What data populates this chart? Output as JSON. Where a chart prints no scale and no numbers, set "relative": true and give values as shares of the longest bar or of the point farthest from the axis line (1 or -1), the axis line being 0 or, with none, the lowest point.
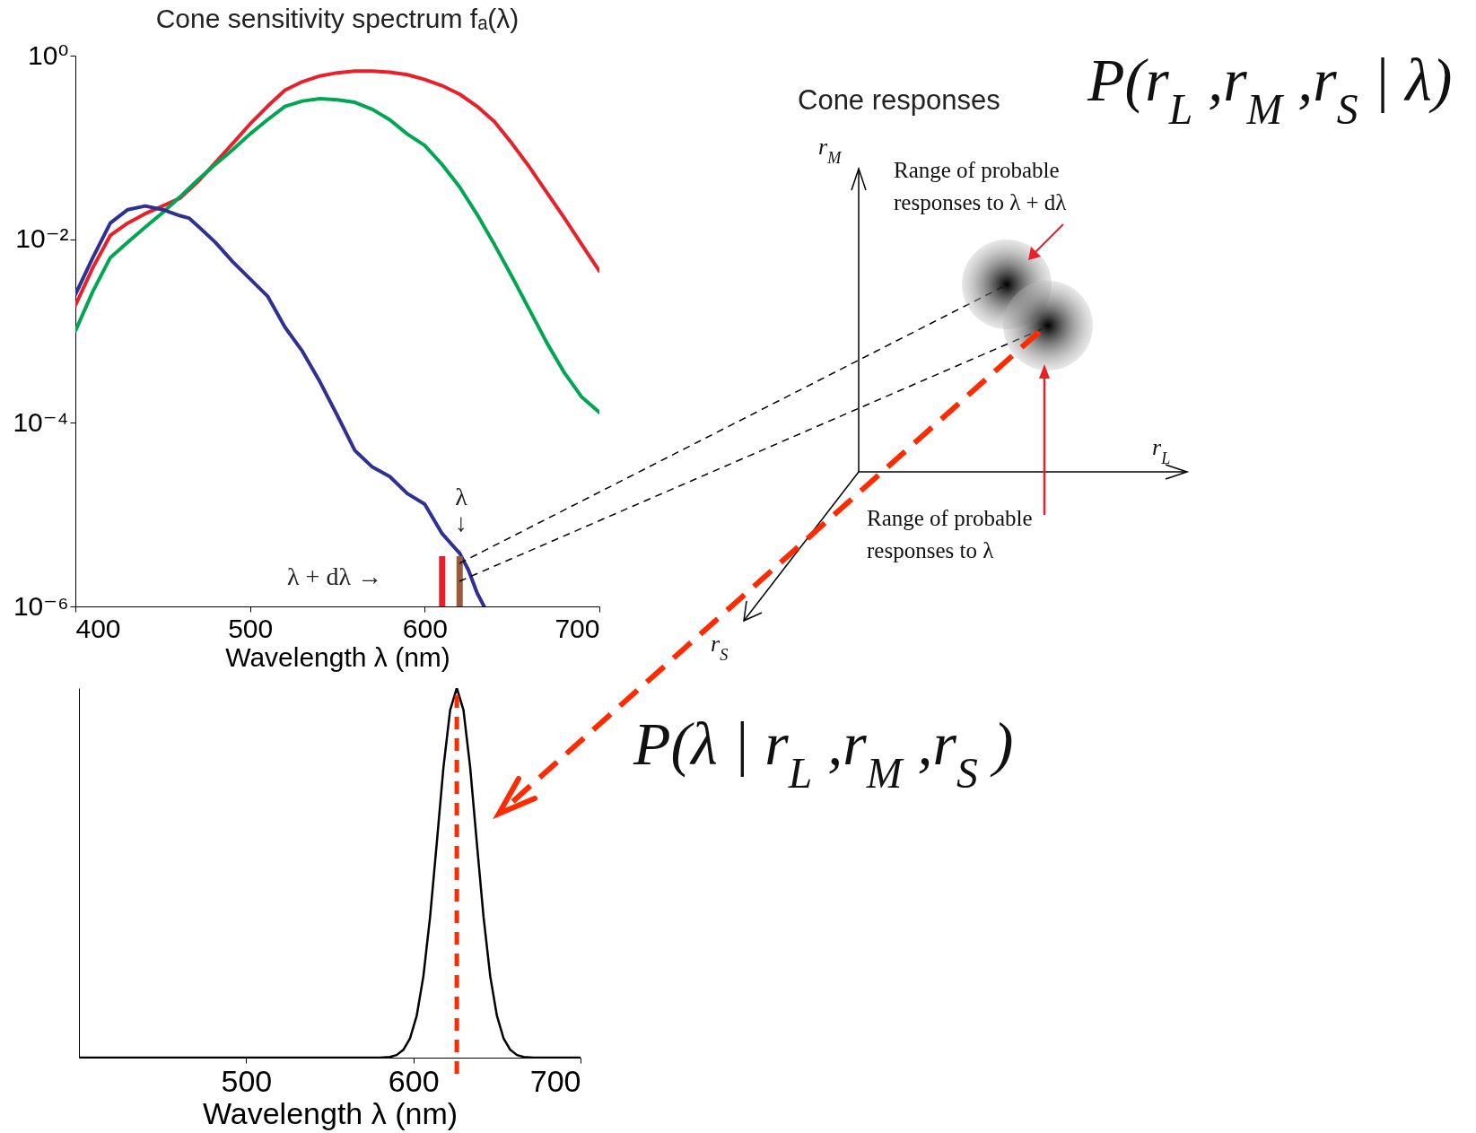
{
  "chart_data": [
    {
      "type": "line",
      "title": "Cone sensitivity spectrum fₐ(λ)",
      "xlabel": "Wavelength  λ   (nm)",
      "xlim": [
        400,
        700
      ],
      "xticks": [
        400,
        500,
        600,
        700
      ],
      "log": true,
      "ylim": [
        1e-06,
        1
      ],
      "yticks": [
        {
          "value": 1e-06,
          "label": "10⁻⁶"
        },
        {
          "value": 0.0001,
          "label": "10⁻⁴"
        },
        {
          "value": 0.01,
          "label": "10⁻²"
        },
        {
          "value": 1,
          "label": "10⁰"
        }
      ],
      "grid": false,
      "legend": false,
      "line_style": "solid",
      "series": [
        {
          "color": "#e8202a",
          "x": [
            400,
            410,
            420,
            430,
            440,
            450,
            460,
            470,
            480,
            490,
            500,
            510,
            520,
            530,
            540,
            550,
            560,
            570,
            580,
            590,
            600,
            610,
            620,
            630,
            640,
            650,
            660,
            670,
            680,
            690,
            700
          ],
          "values": [
            0.0019,
            0.0049,
            0.011,
            0.015,
            0.019,
            0.023,
            0.028,
            0.042,
            0.068,
            0.11,
            0.18,
            0.28,
            0.42,
            0.52,
            0.6,
            0.65,
            0.68,
            0.68,
            0.66,
            0.62,
            0.55,
            0.47,
            0.38,
            0.28,
            0.19,
            0.11,
            0.061,
            0.032,
            0.017,
            0.0087,
            0.0045
          ]
        },
        {
          "color": "#00a651",
          "x": [
            400,
            410,
            420,
            430,
            440,
            450,
            460,
            470,
            480,
            490,
            500,
            510,
            520,
            530,
            540,
            550,
            560,
            570,
            580,
            590,
            600,
            610,
            620,
            630,
            640,
            650,
            660,
            670,
            680,
            690,
            700
          ],
          "values": [
            0.001,
            0.0027,
            0.0063,
            0.0093,
            0.0135,
            0.0195,
            0.029,
            0.044,
            0.065,
            0.094,
            0.14,
            0.2,
            0.28,
            0.32,
            0.34,
            0.33,
            0.31,
            0.26,
            0.2,
            0.14,
            0.105,
            0.065,
            0.037,
            0.0186,
            0.0087,
            0.0039,
            0.0017,
            0.00074,
            0.00035,
            0.00019,
            0.00013
          ]
        },
        {
          "color": "#2e3192",
          "x": [
            400,
            410,
            420,
            430,
            440,
            450,
            460,
            465,
            470,
            480,
            490,
            500,
            510,
            520,
            530,
            540,
            550,
            560,
            570,
            580,
            590,
            600,
            610,
            620,
            625,
            630,
            634
          ],
          "values": [
            0.0025,
            0.0063,
            0.015,
            0.021,
            0.023,
            0.021,
            0.018,
            0.017,
            0.014,
            0.0093,
            0.0057,
            0.0037,
            0.0024,
            0.0011,
            0.0006,
            0.00028,
            0.00012,
            5e-05,
            3.3e-05,
            2.6e-05,
            1.7e-05,
            1.3e-05,
            6.2e-06,
            3.8e-06,
            2.5e-06,
            1.4e-06,
            1e-06
          ]
        }
      ],
      "ref_lines": [
        {
          "axis": "x",
          "value": 610,
          "color": "#e8202a"
        },
        {
          "axis": "x",
          "value": 620,
          "color": "#9b5a3c"
        }
      ],
      "annotations": [
        "λ",
        "↓",
        "λ + dλ →"
      ]
    },
    {
      "type": "line",
      "relative": true,
      "xlabel": "Wavelength λ (nm)",
      "xlim": [
        400,
        700
      ],
      "xticks": [
        500,
        600,
        700
      ],
      "grid": false,
      "legend": false,
      "line_style": "solid",
      "series": [
        {
          "color": "#000000",
          "x": [
            400,
            580,
            586,
            590,
            594,
            598,
            602,
            606,
            610,
            614,
            618,
            622,
            626,
            630,
            634,
            638,
            642,
            646,
            650,
            654,
            658,
            662,
            666,
            672,
            700
          ],
          "values": [
            0,
            0,
            0.002,
            0.007,
            0.021,
            0.052,
            0.113,
            0.22,
            0.38,
            0.58,
            0.785,
            0.94,
            1,
            0.94,
            0.785,
            0.58,
            0.38,
            0.22,
            0.113,
            0.052,
            0.021,
            0.007,
            0.002,
            0,
            0
          ]
        }
      ],
      "ref_lines": [
        {
          "axis": "x",
          "value": 626,
          "color": "#ff2a00",
          "line_style": "dashed"
        }
      ]
    },
    {
      "type": "other",
      "title": "Cone responses",
      "annotations": [
        "P(r$_{L}$ ,r$_{M}$ ,r$_{S}$ | λ)",
        "P(λ | r$_{L}$ ,r$_{M}$ ,r$_{S}$ )",
        "r$_{M}$",
        "r$_{L}$",
        "r$_{S}$",
        "Range of probable responses to λ + dλ",
        "Range of probable responses to λ"
      ]
    }
  ]
}
